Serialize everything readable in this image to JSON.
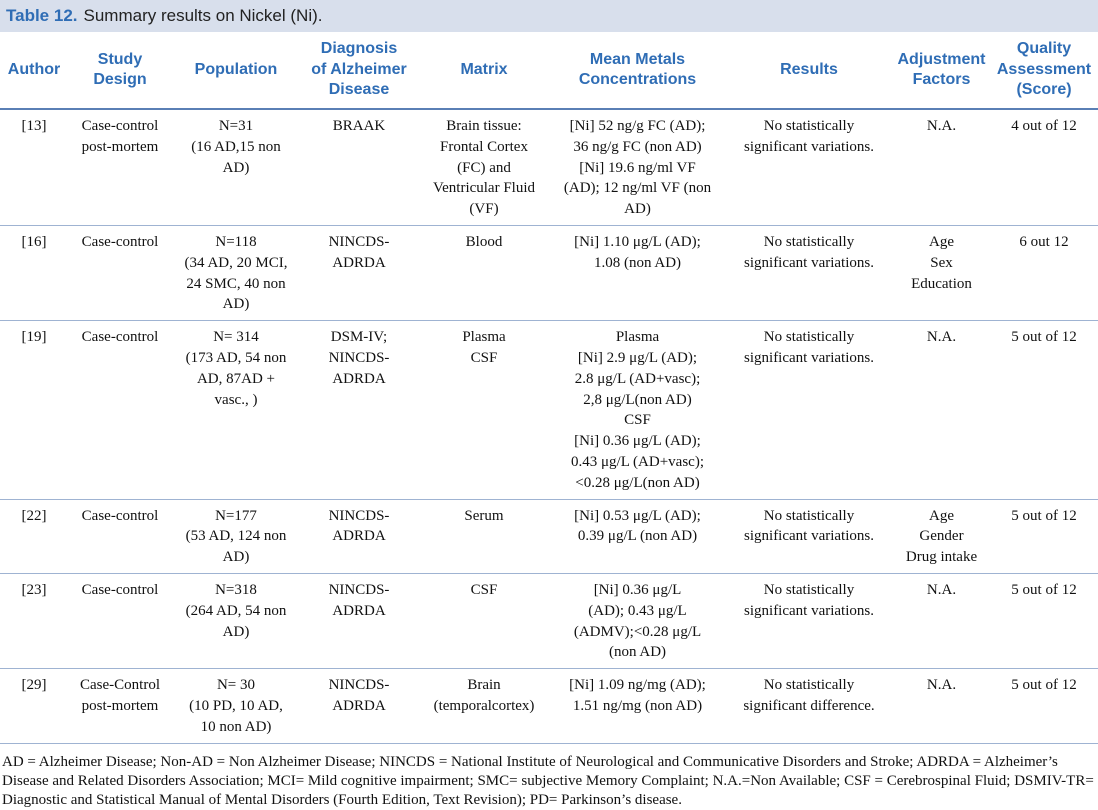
{
  "caption": {
    "label": "Table 12.",
    "text": "Summary results on Nickel (Ni)."
  },
  "table": {
    "headers": [
      [
        "Author"
      ],
      [
        "Study",
        "Design"
      ],
      [
        "Population"
      ],
      [
        "Diagnosis",
        "of Alzheimer",
        "Disease"
      ],
      [
        "Matrix"
      ],
      [
        "Mean Metals",
        "Concentrations"
      ],
      [
        "Results"
      ],
      [
        "Adjustment",
        "Factors"
      ],
      [
        "Quality",
        "Assessment",
        "(Score)"
      ]
    ],
    "rows": [
      [
        [
          "[13]"
        ],
        [
          "Case-control",
          "post-mortem"
        ],
        [
          "N=31",
          "(16 AD,15 non",
          "AD)"
        ],
        [
          "BRAAK"
        ],
        [
          "Brain tissue:",
          "Frontal Cortex",
          "(FC) and",
          "Ventricular Fluid",
          "(VF)"
        ],
        [
          "[Ni] 52 ng/g FC (AD);",
          "36 ng/g FC (non AD)",
          "[Ni] 19.6 ng/ml VF",
          "(AD); 12 ng/ml VF (non",
          "AD)"
        ],
        [
          "No statistically",
          "significant variations."
        ],
        [
          "N.A."
        ],
        [
          "4 out of 12"
        ]
      ],
      [
        [
          "[16]"
        ],
        [
          "Case-control"
        ],
        [
          "N=118",
          "(34 AD, 20 MCI,",
          "24 SMC, 40 non",
          "AD)"
        ],
        [
          "NINCDS-",
          "ADRDA"
        ],
        [
          "Blood"
        ],
        [
          "[Ni] 1.10 μg/L (AD);",
          "1.08 (non AD)"
        ],
        [
          "No statistically",
          "significant variations."
        ],
        [
          "Age",
          "Sex",
          "Education"
        ],
        [
          "6 out 12"
        ]
      ],
      [
        [
          "[19]"
        ],
        [
          "Case-control"
        ],
        [
          "N= 314",
          "(173 AD, 54 non",
          "AD, 87AD +",
          "vasc., )"
        ],
        [
          "DSM-IV;",
          "NINCDS-",
          "ADRDA"
        ],
        [
          "Plasma",
          "CSF"
        ],
        [
          "Plasma",
          "[Ni] 2.9 μg/L (AD);",
          "2.8 μg/L (AD+vasc);",
          "2,8 μg/L(non AD)",
          "CSF",
          "[Ni] 0.36 μg/L (AD);",
          "0.43 μg/L (AD+vasc);",
          "<0.28 μg/L(non AD)"
        ],
        [
          "No statistically",
          "significant variations."
        ],
        [
          "N.A."
        ],
        [
          "5 out of 12"
        ]
      ],
      [
        [
          "[22]"
        ],
        [
          "Case-control"
        ],
        [
          "N=177",
          "(53 AD, 124 non",
          "AD)"
        ],
        [
          "NINCDS-",
          "ADRDA"
        ],
        [
          "Serum"
        ],
        [
          "[Ni] 0.53 μg/L (AD);",
          "0.39 μg/L (non AD)"
        ],
        [
          "No statistically",
          "significant variations."
        ],
        [
          "Age",
          "Gender",
          "Drug intake"
        ],
        [
          "5 out of 12"
        ]
      ],
      [
        [
          "[23]"
        ],
        [
          "Case-control"
        ],
        [
          "N=318",
          "(264 AD, 54 non",
          "AD)"
        ],
        [
          "NINCDS-",
          "ADRDA"
        ],
        [
          "CSF"
        ],
        [
          "[Ni] 0.36 μg/L",
          "(AD); 0.43 μg/L",
          "(ADMV);<0.28 μg/L",
          "(non AD)"
        ],
        [
          "No statistically",
          "significant variations."
        ],
        [
          "N.A."
        ],
        [
          "5 out of 12"
        ]
      ],
      [
        [
          "[29]"
        ],
        [
          "Case-Control",
          "post-mortem"
        ],
        [
          "N= 30",
          "(10 PD, 10 AD,",
          "10 non AD)"
        ],
        [
          "NINCDS-",
          "ADRDA"
        ],
        [
          "Brain",
          "(temporalcortex)"
        ],
        [
          "[Ni] 1.09 ng/mg (AD);",
          "1.51 ng/mg (non AD)"
        ],
        [
          "No statistically",
          "significant difference."
        ],
        [
          "N.A."
        ],
        [
          "5 out of 12"
        ]
      ]
    ]
  },
  "footnote": "AD = Alzheimer Disease; Non-AD = Non Alzheimer Disease; NINCDS = National Institute of Neurological and Communicative Disorders and Stroke; ADRDA = Alzheimer’s Disease and Related Disorders Association; MCI= Mild cognitive impairment; SMC= subjective Memory Complaint; N.A.=Non Available; CSF = Cerebrospinal Fluid; DSMIV-TR= Diagnostic and Statistical Manual of Mental Disorders (Fourth Edition, Text Revision); PD= Parkinson’s disease."
}
